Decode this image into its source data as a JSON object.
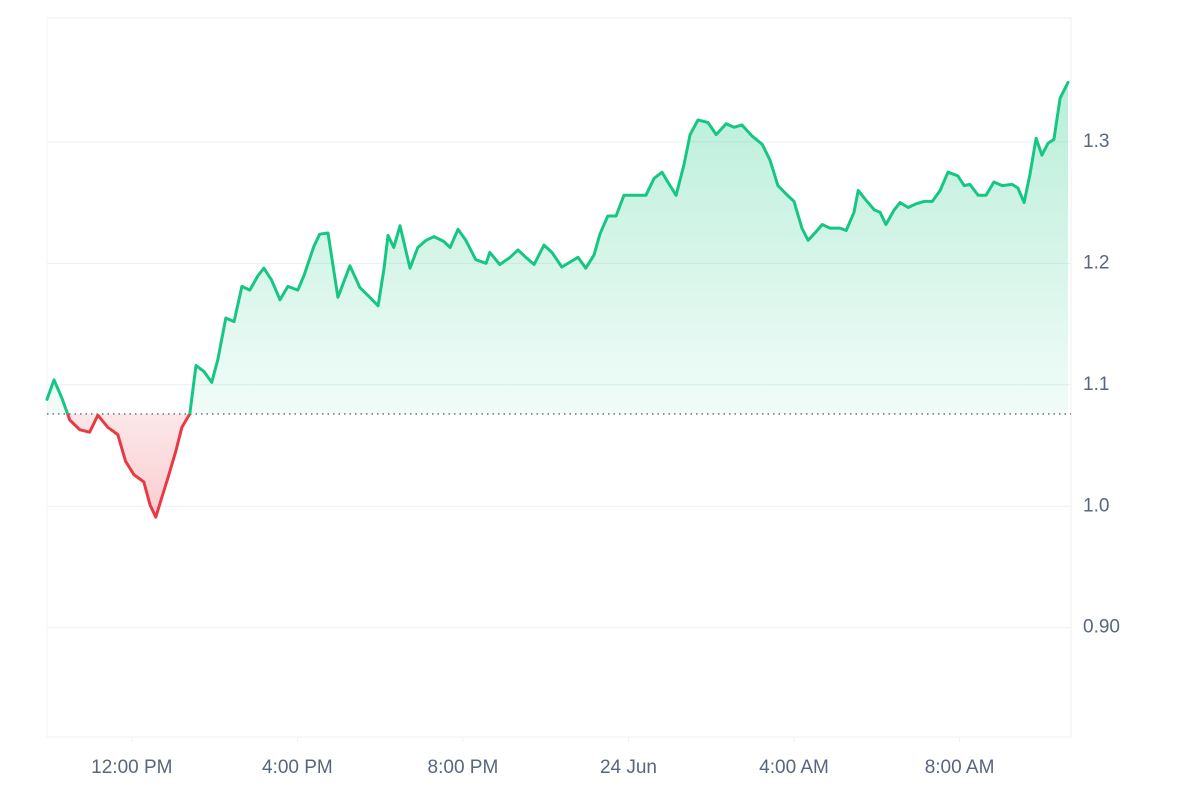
{
  "chart_data": {
    "type": "line",
    "x": [
      9.95,
      10.12,
      10.31,
      10.5,
      10.74,
      10.98,
      11.18,
      11.42,
      11.66,
      11.85,
      12.05,
      12.29,
      12.44,
      12.58,
      12.73,
      12.87,
      13.06,
      13.21,
      13.4,
      13.55,
      13.74,
      13.93,
      14.08,
      14.27,
      14.47,
      14.66,
      14.85,
      15.05,
      15.19,
      15.38,
      15.58,
      15.77,
      16.01,
      16.16,
      16.4,
      16.54,
      16.74,
      16.98,
      17.27,
      17.51,
      17.75,
      17.95,
      18.09,
      18.19,
      18.33,
      18.48,
      18.72,
      18.91,
      19.11,
      19.3,
      19.54,
      19.69,
      19.88,
      20.07,
      20.31,
      20.56,
      20.65,
      20.89,
      21.14,
      21.33,
      21.52,
      21.72,
      21.96,
      22.15,
      22.39,
      22.59,
      22.78,
      22.97,
      23.17,
      23.31,
      23.5,
      23.7,
      23.89,
      24.18,
      24.42,
      24.62,
      24.81,
      24.95,
      25.15,
      25.34,
      25.49,
      25.68,
      25.92,
      26.12,
      26.36,
      26.55,
      26.74,
      26.98,
      27.23,
      27.42,
      27.61,
      27.81,
      28.0,
      28.19,
      28.34,
      28.53,
      28.68,
      28.87,
      29.11,
      29.26,
      29.45,
      29.55,
      29.74,
      29.94,
      30.08,
      30.22,
      30.42,
      30.56,
      30.76,
      30.95,
      31.14,
      31.34,
      31.53,
      31.72,
      31.96,
      32.11,
      32.25,
      32.45,
      32.64,
      32.83,
      33.03,
      33.27,
      33.41,
      33.56,
      33.7,
      33.85,
      33.99,
      34.14,
      34.28,
      34.43,
      34.62
    ],
    "series": [
      {
        "values": [
          1.088,
          1.104,
          1.089,
          1.071,
          1.063,
          1.061,
          1.075,
          1.065,
          1.059,
          1.037,
          1.026,
          1.02,
          1.001,
          0.991,
          1.008,
          1.023,
          1.045,
          1.065,
          1.076,
          1.116,
          1.111,
          1.102,
          1.121,
          1.155,
          1.152,
          1.181,
          1.178,
          1.19,
          1.196,
          1.186,
          1.17,
          1.181,
          1.178,
          1.19,
          1.214,
          1.224,
          1.225,
          1.172,
          1.198,
          1.18,
          1.172,
          1.165,
          1.195,
          1.223,
          1.213,
          1.231,
          1.196,
          1.213,
          1.219,
          1.222,
          1.218,
          1.213,
          1.228,
          1.219,
          1.203,
          1.2,
          1.209,
          1.199,
          1.205,
          1.211,
          1.205,
          1.199,
          1.215,
          1.209,
          1.197,
          1.201,
          1.205,
          1.196,
          1.207,
          1.224,
          1.239,
          1.239,
          1.256,
          1.256,
          1.256,
          1.27,
          1.275,
          1.267,
          1.256,
          1.281,
          1.306,
          1.318,
          1.316,
          1.306,
          1.315,
          1.312,
          1.314,
          1.305,
          1.298,
          1.285,
          1.264,
          1.257,
          1.251,
          1.229,
          1.219,
          1.226,
          1.232,
          1.229,
          1.229,
          1.227,
          1.242,
          1.26,
          1.252,
          1.244,
          1.242,
          1.232,
          1.244,
          1.25,
          1.246,
          1.249,
          1.251,
          1.251,
          1.26,
          1.275,
          1.272,
          1.264,
          1.265,
          1.256,
          1.256,
          1.267,
          1.264,
          1.265,
          1.262,
          1.25,
          1.273,
          1.303,
          1.289,
          1.299,
          1.302,
          1.336,
          1.349
        ]
      }
    ],
    "baseline": 1.076,
    "up_color": "#16c784",
    "down_color": "#ea3943",
    "xlim": [
      9.95,
      34.62
    ],
    "xticks": [
      {
        "value": 12,
        "label": "12:00 PM"
      },
      {
        "value": 16,
        "label": "4:00 PM"
      },
      {
        "value": 20,
        "label": "8:00 PM"
      },
      {
        "value": 24,
        "label": "24 Jun"
      },
      {
        "value": 28,
        "label": "4:00 AM"
      },
      {
        "value": 32,
        "label": "8:00 AM"
      }
    ],
    "ylim": [
      0.81,
      1.402
    ],
    "yticks": [
      1.3,
      1.2,
      1.1,
      {
        "value": 1.0,
        "label": "1.0"
      },
      {
        "value": 0.9,
        "label": "0.90"
      }
    ],
    "grid": true
  }
}
